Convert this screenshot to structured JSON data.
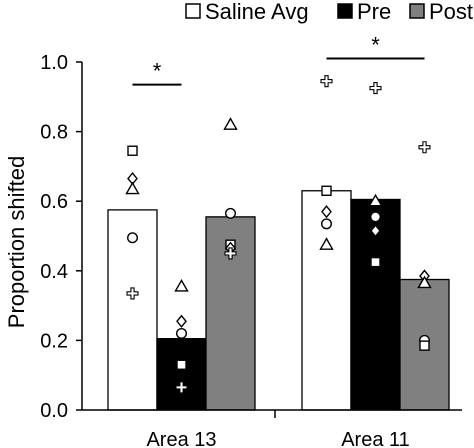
{
  "chart_data": {
    "type": "bar",
    "ylabel": "Proportion shifted",
    "xlabel": "",
    "ylim": [
      0,
      1.0
    ],
    "yticks": [
      0.0,
      0.2,
      0.4,
      0.6,
      0.8,
      1.0
    ],
    "ytick_labels": [
      "0.0",
      "0.2",
      "0.4",
      "0.6",
      "0.8",
      "1.0"
    ],
    "categories": [
      "Area 13",
      "Area 11"
    ],
    "legend_position": "top",
    "series": [
      {
        "name": "Saline Avg",
        "fill": "#ffffff",
        "values": [
          0.575,
          0.63
        ]
      },
      {
        "name": "Pre",
        "fill": "#000000",
        "values": [
          0.205,
          0.605
        ]
      },
      {
        "name": "Post",
        "fill": "#808080",
        "values": [
          0.555,
          0.375
        ]
      }
    ],
    "points": [
      {
        "category": 0,
        "series": 0,
        "values": [
          {
            "shape": "square",
            "y": 0.745
          },
          {
            "shape": "diamond",
            "y": 0.665
          },
          {
            "shape": "triangle",
            "y": 0.635
          },
          {
            "shape": "circle",
            "y": 0.495
          },
          {
            "shape": "cross",
            "y": 0.335
          }
        ]
      },
      {
        "category": 0,
        "series": 1,
        "values": [
          {
            "shape": "triangle",
            "y": 0.355
          },
          {
            "shape": "diamond",
            "y": 0.255
          },
          {
            "shape": "circle",
            "y": 0.22
          },
          {
            "shape": "square",
            "y": 0.13
          },
          {
            "shape": "cross",
            "y": 0.065
          }
        ]
      },
      {
        "category": 0,
        "series": 2,
        "values": [
          {
            "shape": "triangle",
            "y": 0.82
          },
          {
            "shape": "circle",
            "y": 0.565
          },
          {
            "shape": "square",
            "y": 0.475
          },
          {
            "shape": "diamond",
            "y": 0.465
          },
          {
            "shape": "cross",
            "y": 0.45
          }
        ]
      },
      {
        "category": 1,
        "series": 0,
        "values": [
          {
            "shape": "cross",
            "y": 0.945
          },
          {
            "shape": "square",
            "y": 0.63
          },
          {
            "shape": "diamond",
            "y": 0.57
          },
          {
            "shape": "circle",
            "y": 0.535
          },
          {
            "shape": "triangle",
            "y": 0.475
          }
        ]
      },
      {
        "category": 1,
        "series": 1,
        "values": [
          {
            "shape": "cross",
            "y": 0.925
          },
          {
            "shape": "triangle",
            "y": 0.6
          },
          {
            "shape": "circle",
            "y": 0.555
          },
          {
            "shape": "diamond",
            "y": 0.515
          },
          {
            "shape": "square",
            "y": 0.425
          }
        ]
      },
      {
        "category": 1,
        "series": 2,
        "values": [
          {
            "shape": "cross",
            "y": 0.755
          },
          {
            "shape": "diamond",
            "y": 0.385
          },
          {
            "shape": "triangle",
            "y": 0.365
          },
          {
            "shape": "circle",
            "y": 0.2
          },
          {
            "shape": "square",
            "y": 0.185
          }
        ]
      }
    ],
    "significance": [
      {
        "category": 0,
        "from_series": 0,
        "to_series": 1,
        "label": "*",
        "y": 0.935
      },
      {
        "category": 1,
        "from_series": 0,
        "to_series": 2,
        "label": "*",
        "y": 1.01
      }
    ]
  }
}
